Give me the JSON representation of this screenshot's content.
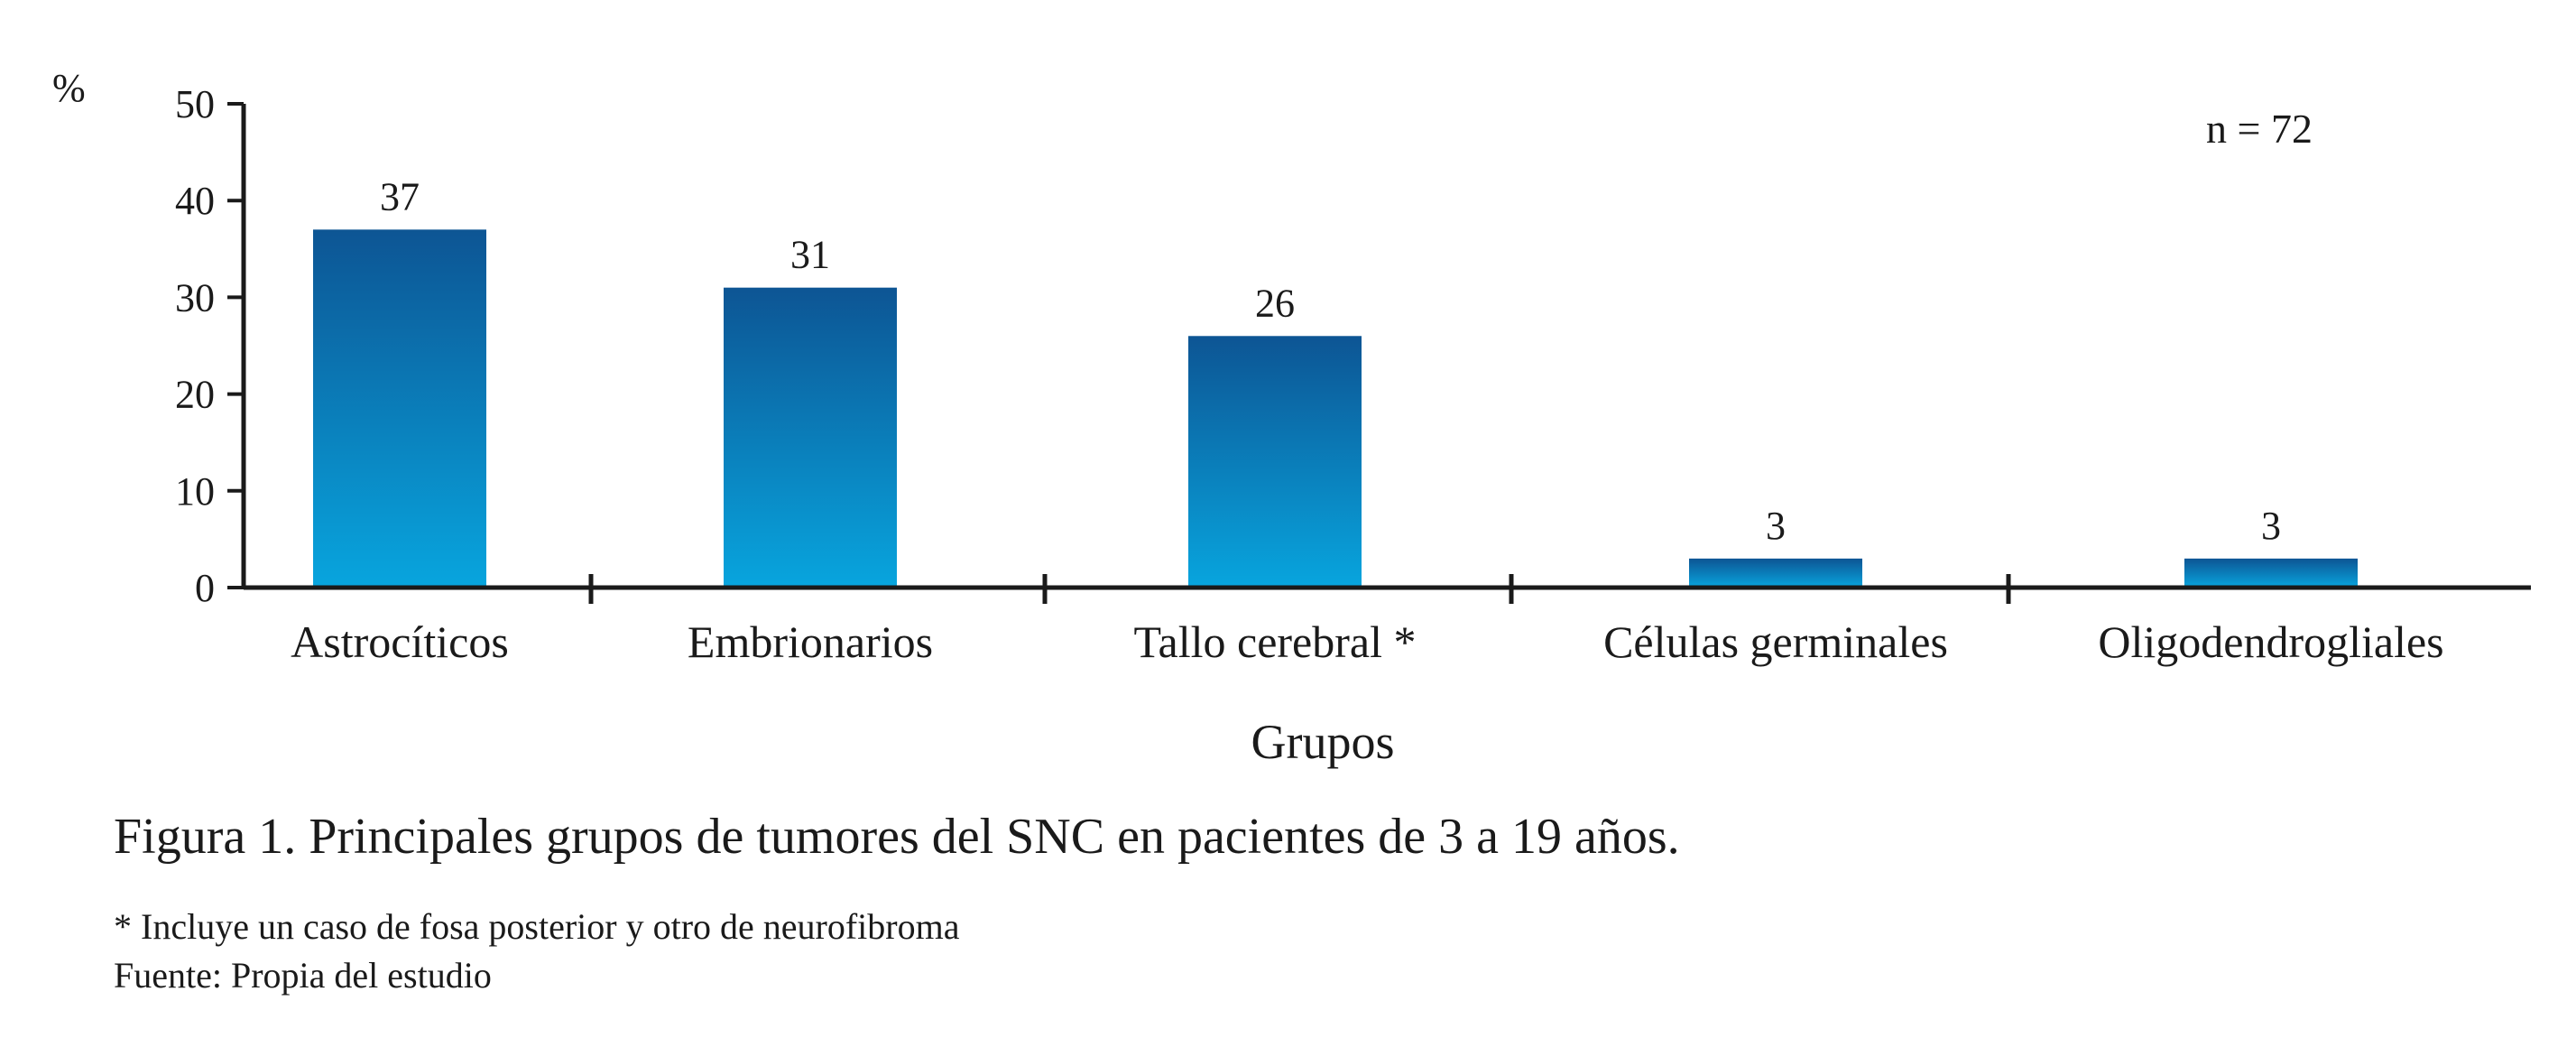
{
  "chart_data": {
    "type": "bar",
    "categories": [
      "Astrocíticos",
      "Embrionarios",
      "Tallo cerebral *",
      "Células germinales",
      "Oligodendrogliales"
    ],
    "values": [
      37,
      31,
      26,
      3,
      3
    ],
    "data_labels": [
      "37",
      "31",
      "26",
      "3",
      "3"
    ],
    "ylabel_prefix": "%",
    "xlabel": "Grupos",
    "ylim": [
      0,
      50
    ],
    "yticks": [
      0,
      10,
      20,
      30,
      40,
      50
    ],
    "annotation": "n = 72",
    "grid": false,
    "colors": {
      "bar_top": "#0d5594",
      "bar_bottom": "#08a5de",
      "axis": "#1a1a1a"
    }
  },
  "caption": "Figura 1. Principales grupos de tumores del SNC en pacientes de 3 a 19 años.",
  "notes": [
    "* Incluye un caso de fosa posterior y otro de neurofibroma",
    "Fuente: Propia del estudio"
  ]
}
